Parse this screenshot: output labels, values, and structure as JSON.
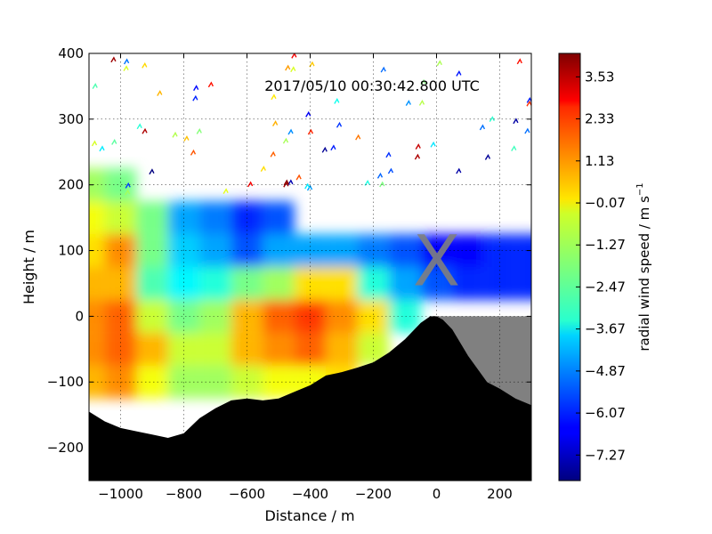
{
  "chart_data": {
    "type": "heatmap",
    "title": "2017/05/10 00:30:42.800 UTC",
    "xlabel": "Distance / m",
    "ylabel": "Height / m",
    "xlim": [
      -1100,
      300
    ],
    "ylim": [
      -250,
      400
    ],
    "x_ticks": [
      -1000,
      -800,
      -600,
      -400,
      -200,
      0,
      200
    ],
    "x_tick_labels": [
      "−1000",
      "−800",
      "−600",
      "−400",
      "−200",
      "0",
      "200"
    ],
    "y_ticks": [
      -200,
      -100,
      0,
      100,
      200,
      300,
      400
    ],
    "y_tick_labels": [
      "−200",
      "−100",
      "0",
      "100",
      "200",
      "300",
      "400"
    ],
    "grid": true,
    "marker": {
      "label": "X",
      "x": 0,
      "y": 85
    },
    "colorbar": {
      "label": "radial wind speed / m s",
      "label_superscript": "−1",
      "vmin": -8.0,
      "vmax": 4.2,
      "ticks": [
        3.53,
        2.33,
        1.13,
        -0.07,
        -1.27,
        -2.47,
        -3.67,
        -4.87,
        -6.07,
        -7.27
      ],
      "tick_labels": [
        "3.53",
        "2.33",
        "1.13",
        "−0.07",
        "−1.27",
        "−2.47",
        "−3.67",
        "−4.87",
        "−6.07",
        "−7.27"
      ]
    },
    "terrain_profile": {
      "x": [
        -1100,
        -1050,
        -1000,
        -950,
        -900,
        -850,
        -800,
        -750,
        -700,
        -650,
        -600,
        -550,
        -500,
        -450,
        -400,
        -350,
        -300,
        -250,
        -200,
        -150,
        -100,
        -50,
        -20,
        0,
        20,
        50,
        100,
        130,
        160,
        200,
        250,
        300
      ],
      "y": [
        -145,
        -160,
        -170,
        -175,
        -180,
        -185,
        -178,
        -155,
        -140,
        -128,
        -125,
        -128,
        -125,
        -115,
        -105,
        -90,
        -85,
        -78,
        -70,
        -55,
        -35,
        -10,
        0,
        0,
        -5,
        -20,
        -60,
        -80,
        -100,
        -110,
        -125,
        -135
      ]
    },
    "radial_wind_field": {
      "x": [
        -1100,
        -1000,
        -900,
        -800,
        -700,
        -600,
        -500,
        -400,
        -300,
        -200,
        -100,
        0,
        100,
        200,
        300
      ],
      "y": [
        -100,
        -50,
        0,
        50,
        100,
        150,
        200
      ],
      "values": [
        [
          0.5,
          1.0,
          -0.5,
          -1.5,
          -1.5,
          -1.0,
          -0.5,
          -0.5,
          0.0,
          null,
          null,
          null,
          null,
          null,
          null
        ],
        [
          1.0,
          1.5,
          0.5,
          -1.0,
          -1.0,
          0.5,
          1.0,
          1.5,
          0.5,
          -1.0,
          null,
          null,
          null,
          null,
          null
        ],
        [
          1.0,
          1.5,
          -1.0,
          -2.0,
          -1.5,
          0.5,
          1.5,
          2.0,
          1.0,
          0.0,
          -3.0,
          null,
          null,
          null,
          null
        ],
        [
          0.5,
          0.5,
          -2.5,
          -3.5,
          -3.0,
          -2.0,
          -1.5,
          0.0,
          0.0,
          -3.0,
          -4.5,
          -5.5,
          -6.0,
          -6.0,
          -6.0
        ],
        [
          0.0,
          1.0,
          -2.0,
          -4.0,
          -4.5,
          -5.5,
          -4.5,
          -4.5,
          -4.5,
          -5.0,
          -5.5,
          -6.5,
          -6.5,
          -6.0,
          -6.0
        ],
        [
          -0.5,
          -1.0,
          -2.0,
          -4.5,
          -5.0,
          -6.0,
          -5.5,
          null,
          null,
          null,
          null,
          null,
          null,
          null,
          null
        ],
        [
          -1.5,
          -2.0,
          null,
          null,
          null,
          null,
          null,
          null,
          null,
          null,
          null,
          null,
          null,
          null,
          null
        ]
      ]
    }
  }
}
